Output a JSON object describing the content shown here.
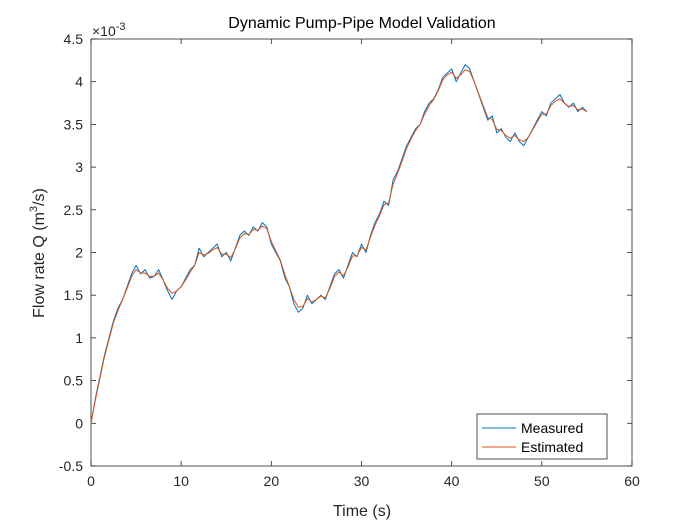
{
  "chart_data": {
    "type": "line",
    "title": "Dynamic Pump-Pipe Model Validation",
    "xlabel": "Time (s)",
    "ylabel": {
      "prefix": "Flow rate Q (m",
      "sup": "3",
      "suffix": "/s)"
    },
    "exponent_label": {
      "base": "×10",
      "exp": "-3"
    },
    "xlim": [
      0,
      60
    ],
    "ylim": [
      -0.5,
      4.5
    ],
    "xticks": [
      "0",
      "10",
      "20",
      "30",
      "40",
      "50",
      "60"
    ],
    "yticks": [
      "-0.5",
      "0",
      "0.5",
      "1",
      "1.5",
      "2",
      "2.5",
      "3",
      "3.5",
      "4",
      "4.5"
    ],
    "legend_position": "bottom-right",
    "grid": false,
    "series": [
      {
        "name": "Measured",
        "color": "#0072BD",
        "x": [
          0,
          0.5,
          1,
          1.5,
          2,
          2.5,
          3,
          3.5,
          4,
          4.5,
          5,
          5.5,
          6,
          6.5,
          7,
          7.5,
          8,
          8.5,
          9,
          9.5,
          10,
          10.5,
          11,
          11.5,
          12,
          12.5,
          13,
          13.5,
          14,
          14.5,
          15,
          15.5,
          16,
          16.5,
          17,
          17.5,
          18,
          18.5,
          19,
          19.5,
          20,
          20.5,
          21,
          21.5,
          22,
          22.5,
          23,
          23.5,
          24,
          24.5,
          25,
          25.5,
          26,
          26.5,
          27,
          27.5,
          28,
          28.5,
          29,
          29.5,
          30,
          30.5,
          31,
          31.5,
          32,
          32.5,
          33,
          33.5,
          34,
          34.5,
          35,
          35.5,
          36,
          36.5,
          37,
          37.5,
          38,
          38.5,
          39,
          39.5,
          40,
          40.5,
          41,
          41.5,
          42,
          42.5,
          43,
          43.5,
          44,
          44.5,
          45,
          45.5,
          46,
          46.5,
          47,
          47.5,
          48,
          48.5,
          49,
          49.5,
          50,
          50.5,
          51,
          51.5,
          52,
          52.5,
          53,
          53.5,
          54,
          54.5,
          55
        ],
        "y": [
          0.0,
          0.3,
          0.55,
          0.8,
          1.0,
          1.2,
          1.35,
          1.45,
          1.6,
          1.75,
          1.85,
          1.75,
          1.8,
          1.7,
          1.72,
          1.8,
          1.68,
          1.55,
          1.45,
          1.55,
          1.6,
          1.7,
          1.8,
          1.85,
          2.05,
          1.95,
          2.0,
          2.05,
          2.1,
          1.95,
          2.0,
          1.9,
          2.05,
          2.2,
          2.25,
          2.2,
          2.3,
          2.25,
          2.35,
          2.3,
          2.1,
          2.0,
          1.9,
          1.7,
          1.6,
          1.4,
          1.3,
          1.35,
          1.5,
          1.4,
          1.45,
          1.5,
          1.45,
          1.6,
          1.75,
          1.8,
          1.7,
          1.85,
          2.0,
          1.95,
          2.1,
          2.0,
          2.2,
          2.35,
          2.45,
          2.6,
          2.55,
          2.85,
          2.95,
          3.1,
          3.25,
          3.35,
          3.45,
          3.5,
          3.65,
          3.75,
          3.8,
          3.9,
          4.05,
          4.1,
          4.15,
          4.0,
          4.1,
          4.2,
          4.15,
          4.0,
          3.85,
          3.7,
          3.55,
          3.6,
          3.4,
          3.45,
          3.35,
          3.3,
          3.4,
          3.3,
          3.25,
          3.35,
          3.45,
          3.55,
          3.65,
          3.6,
          3.75,
          3.8,
          3.85,
          3.75,
          3.7,
          3.75,
          3.65,
          3.7,
          3.65
        ]
      },
      {
        "name": "Estimated",
        "color": "#D95319",
        "x": [
          0,
          0.5,
          1,
          1.5,
          2,
          2.5,
          3,
          3.5,
          4,
          4.5,
          5,
          5.5,
          6,
          6.5,
          7,
          7.5,
          8,
          8.5,
          9,
          9.5,
          10,
          10.5,
          11,
          11.5,
          12,
          12.5,
          13,
          13.5,
          14,
          14.5,
          15,
          15.5,
          16,
          16.5,
          17,
          17.5,
          18,
          18.5,
          19,
          19.5,
          20,
          20.5,
          21,
          21.5,
          22,
          22.5,
          23,
          23.5,
          24,
          24.5,
          25,
          25.5,
          26,
          26.5,
          27,
          27.5,
          28,
          28.5,
          29,
          29.5,
          30,
          30.5,
          31,
          31.5,
          32,
          32.5,
          33,
          33.5,
          34,
          34.5,
          35,
          35.5,
          36,
          36.5,
          37,
          37.5,
          38,
          38.5,
          39,
          39.5,
          40,
          40.5,
          41,
          41.5,
          42,
          42.5,
          43,
          43.5,
          44,
          44.5,
          45,
          45.5,
          46,
          46.5,
          47,
          47.5,
          48,
          48.5,
          49,
          49.5,
          50,
          50.5,
          51,
          51.5,
          52,
          52.5,
          53,
          53.5,
          54,
          54.5,
          55
        ],
        "y": [
          0.0,
          0.28,
          0.53,
          0.78,
          0.98,
          1.18,
          1.32,
          1.45,
          1.58,
          1.72,
          1.8,
          1.76,
          1.76,
          1.72,
          1.72,
          1.76,
          1.68,
          1.58,
          1.52,
          1.55,
          1.6,
          1.68,
          1.77,
          1.85,
          2.0,
          1.97,
          1.99,
          2.03,
          2.06,
          1.98,
          1.98,
          1.94,
          2.04,
          2.17,
          2.22,
          2.21,
          2.27,
          2.26,
          2.31,
          2.28,
          2.13,
          2.02,
          1.91,
          1.74,
          1.6,
          1.45,
          1.36,
          1.37,
          1.46,
          1.42,
          1.45,
          1.49,
          1.47,
          1.58,
          1.72,
          1.77,
          1.73,
          1.83,
          1.96,
          1.96,
          2.06,
          2.03,
          2.18,
          2.32,
          2.43,
          2.56,
          2.58,
          2.8,
          2.93,
          3.07,
          3.22,
          3.33,
          3.43,
          3.5,
          3.62,
          3.72,
          3.79,
          3.89,
          4.02,
          4.08,
          4.11,
          4.04,
          4.08,
          4.14,
          4.12,
          4.0,
          3.86,
          3.72,
          3.58,
          3.56,
          3.44,
          3.43,
          3.37,
          3.34,
          3.37,
          3.32,
          3.3,
          3.35,
          3.44,
          3.53,
          3.62,
          3.62,
          3.72,
          3.77,
          3.8,
          3.75,
          3.71,
          3.72,
          3.67,
          3.68,
          3.65
        ]
      }
    ]
  }
}
